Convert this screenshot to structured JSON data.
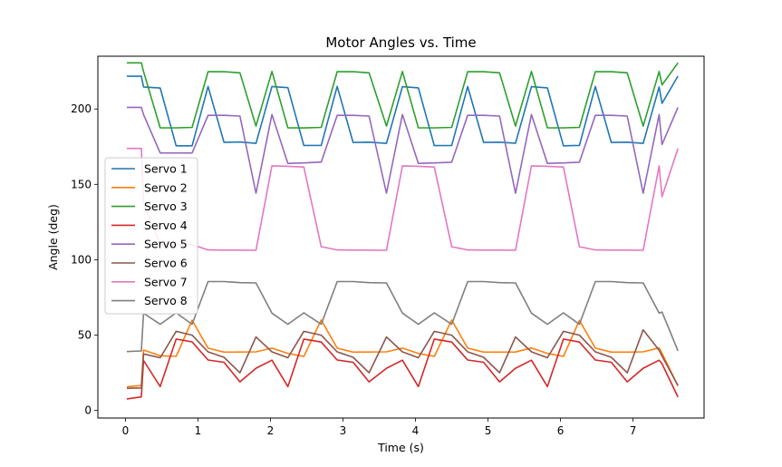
{
  "chart_data": {
    "type": "line",
    "title": "Motor Angles vs. Time",
    "xlabel": "Time (s)",
    "ylabel": "Angle (deg)",
    "xlim": [
      -0.38,
      7.98
    ],
    "ylim": [
      -5,
      235
    ],
    "xticks": [
      0,
      1,
      2,
      3,
      4,
      5,
      6,
      7
    ],
    "yticks": [
      0,
      50,
      100,
      150,
      200
    ],
    "grid": false,
    "legend_position": "center-left",
    "series": [
      {
        "name": "Servo 1",
        "color": "#1f77b4",
        "points": [
          [
            0.02,
            221.7
          ],
          [
            0.22,
            221.7
          ],
          [
            0.25,
            214.6
          ],
          [
            0.48,
            213.9
          ],
          [
            0.7,
            175.6
          ],
          [
            0.92,
            175.6
          ],
          [
            1.14,
            215.0
          ],
          [
            1.36,
            177.9
          ],
          [
            1.58,
            178.1
          ],
          [
            1.8,
            177.2
          ],
          [
            2.02,
            214.9
          ],
          [
            2.24,
            214.1
          ],
          [
            2.46,
            175.8
          ],
          [
            2.7,
            175.9
          ],
          [
            2.92,
            215.0
          ],
          [
            3.14,
            177.8
          ],
          [
            3.36,
            178.0
          ],
          [
            3.6,
            177.2
          ],
          [
            3.82,
            214.8
          ],
          [
            4.04,
            214.0
          ],
          [
            4.26,
            175.7
          ],
          [
            4.5,
            175.8
          ],
          [
            4.72,
            214.9
          ],
          [
            4.94,
            177.8
          ],
          [
            5.16,
            178.0
          ],
          [
            5.38,
            177.3
          ],
          [
            5.6,
            214.8
          ],
          [
            5.82,
            214.0
          ],
          [
            6.04,
            175.6
          ],
          [
            6.26,
            175.8
          ],
          [
            6.48,
            215.0
          ],
          [
            6.7,
            177.8
          ],
          [
            6.92,
            178.0
          ],
          [
            7.14,
            177.2
          ],
          [
            7.36,
            214.6
          ],
          [
            7.4,
            203.7
          ],
          [
            7.62,
            221.8
          ]
        ]
      },
      {
        "name": "Servo 2",
        "color": "#ff7f0e",
        "points": [
          [
            0.02,
            15.7
          ],
          [
            0.22,
            16.6
          ],
          [
            0.25,
            40.1
          ],
          [
            0.48,
            36.3
          ],
          [
            0.7,
            35.9
          ],
          [
            0.92,
            59.9
          ],
          [
            1.14,
            41.4
          ],
          [
            1.36,
            38.7
          ],
          [
            1.58,
            38.8
          ],
          [
            1.8,
            38.9
          ],
          [
            2.02,
            41.4
          ],
          [
            2.24,
            37.8
          ],
          [
            2.46,
            35.9
          ],
          [
            2.7,
            60.1
          ],
          [
            2.92,
            41.4
          ],
          [
            3.14,
            38.7
          ],
          [
            3.36,
            38.8
          ],
          [
            3.6,
            38.9
          ],
          [
            3.82,
            41.4
          ],
          [
            4.04,
            37.8
          ],
          [
            4.26,
            35.9
          ],
          [
            4.5,
            60.0
          ],
          [
            4.72,
            41.4
          ],
          [
            4.94,
            38.7
          ],
          [
            5.16,
            38.7
          ],
          [
            5.38,
            38.8
          ],
          [
            5.6,
            41.5
          ],
          [
            5.82,
            37.8
          ],
          [
            6.04,
            35.9
          ],
          [
            6.26,
            59.8
          ],
          [
            6.48,
            41.4
          ],
          [
            6.7,
            38.7
          ],
          [
            6.92,
            38.7
          ],
          [
            7.14,
            38.9
          ],
          [
            7.36,
            41.5
          ],
          [
            7.4,
            38.0
          ],
          [
            7.62,
            16.3
          ]
        ]
      },
      {
        "name": "Servo 3",
        "color": "#2ca02c",
        "points": [
          [
            0.02,
            230.6
          ],
          [
            0.22,
            230.6
          ],
          [
            0.25,
            224.9
          ],
          [
            0.48,
            187.5
          ],
          [
            0.7,
            187.5
          ],
          [
            0.92,
            187.8
          ],
          [
            1.14,
            224.7
          ],
          [
            1.36,
            224.7
          ],
          [
            1.58,
            224.0
          ],
          [
            1.8,
            188.7
          ],
          [
            2.02,
            224.9
          ],
          [
            2.24,
            187.5
          ],
          [
            2.46,
            187.4
          ],
          [
            2.7,
            187.8
          ],
          [
            2.92,
            224.7
          ],
          [
            3.14,
            224.7
          ],
          [
            3.36,
            224.0
          ],
          [
            3.6,
            188.7
          ],
          [
            3.82,
            224.9
          ],
          [
            4.04,
            187.5
          ],
          [
            4.26,
            187.5
          ],
          [
            4.5,
            187.8
          ],
          [
            4.72,
            224.7
          ],
          [
            4.94,
            224.7
          ],
          [
            5.16,
            224.0
          ],
          [
            5.38,
            188.7
          ],
          [
            5.6,
            224.9
          ],
          [
            5.82,
            187.5
          ],
          [
            6.04,
            187.5
          ],
          [
            6.26,
            187.8
          ],
          [
            6.48,
            224.7
          ],
          [
            6.7,
            224.7
          ],
          [
            6.92,
            224.0
          ],
          [
            7.14,
            188.7
          ],
          [
            7.36,
            224.9
          ],
          [
            7.4,
            216.0
          ],
          [
            7.62,
            230.6
          ]
        ]
      },
      {
        "name": "Servo 4",
        "color": "#d62728",
        "points": [
          [
            0.02,
            7.7
          ],
          [
            0.22,
            9.0
          ],
          [
            0.25,
            33.2
          ],
          [
            0.48,
            15.9
          ],
          [
            0.7,
            47.4
          ],
          [
            0.92,
            45.5
          ],
          [
            1.14,
            33.5
          ],
          [
            1.36,
            32.0
          ],
          [
            1.58,
            19.0
          ],
          [
            1.8,
            28.0
          ],
          [
            2.02,
            33.4
          ],
          [
            2.24,
            15.9
          ],
          [
            2.46,
            47.4
          ],
          [
            2.7,
            45.4
          ],
          [
            2.92,
            33.5
          ],
          [
            3.14,
            32.0
          ],
          [
            3.36,
            19.0
          ],
          [
            3.6,
            28.0
          ],
          [
            3.82,
            33.4
          ],
          [
            4.04,
            15.9
          ],
          [
            4.26,
            47.4
          ],
          [
            4.5,
            45.4
          ],
          [
            4.72,
            33.5
          ],
          [
            4.94,
            32.0
          ],
          [
            5.16,
            19.0
          ],
          [
            5.38,
            28.0
          ],
          [
            5.6,
            33.4
          ],
          [
            5.82,
            15.9
          ],
          [
            6.04,
            47.4
          ],
          [
            6.26,
            45.4
          ],
          [
            6.48,
            33.5
          ],
          [
            6.7,
            32.0
          ],
          [
            6.92,
            19.0
          ],
          [
            7.14,
            28.0
          ],
          [
            7.36,
            33.4
          ],
          [
            7.4,
            31.0
          ],
          [
            7.62,
            8.9
          ]
        ]
      },
      {
        "name": "Servo 5",
        "color": "#9467bd",
        "points": [
          [
            0.02,
            201.1
          ],
          [
            0.22,
            201.1
          ],
          [
            0.25,
            196.3
          ],
          [
            0.48,
            170.8
          ],
          [
            0.7,
            170.8
          ],
          [
            0.92,
            170.8
          ],
          [
            1.14,
            195.8
          ],
          [
            1.36,
            195.8
          ],
          [
            1.58,
            195.3
          ],
          [
            1.8,
            144.2
          ],
          [
            2.02,
            196.3
          ],
          [
            2.24,
            163.9
          ],
          [
            2.46,
            164.2
          ],
          [
            2.7,
            164.8
          ],
          [
            2.92,
            195.8
          ],
          [
            3.14,
            195.8
          ],
          [
            3.36,
            195.3
          ],
          [
            3.6,
            144.2
          ],
          [
            3.82,
            196.3
          ],
          [
            4.04,
            163.9
          ],
          [
            4.26,
            164.2
          ],
          [
            4.5,
            164.7
          ],
          [
            4.72,
            195.8
          ],
          [
            4.94,
            195.8
          ],
          [
            5.16,
            195.3
          ],
          [
            5.38,
            144.1
          ],
          [
            5.6,
            196.3
          ],
          [
            5.82,
            163.9
          ],
          [
            6.04,
            164.2
          ],
          [
            6.26,
            164.7
          ],
          [
            6.48,
            195.8
          ],
          [
            6.7,
            195.8
          ],
          [
            6.92,
            195.3
          ],
          [
            7.14,
            144.1
          ],
          [
            7.36,
            196.3
          ],
          [
            7.4,
            176.5
          ],
          [
            7.62,
            201.1
          ]
        ]
      },
      {
        "name": "Servo 6",
        "color": "#8c564b",
        "points": [
          [
            0.02,
            14.7
          ],
          [
            0.22,
            15.0
          ],
          [
            0.25,
            37.5
          ],
          [
            0.48,
            35.0
          ],
          [
            0.7,
            52.5
          ],
          [
            0.92,
            50.0
          ],
          [
            1.14,
            38.9
          ],
          [
            1.36,
            35.3
          ],
          [
            1.58,
            25.0
          ],
          [
            1.8,
            48.8
          ],
          [
            2.02,
            38.9
          ],
          [
            2.24,
            35.0
          ],
          [
            2.46,
            52.5
          ],
          [
            2.7,
            50.0
          ],
          [
            2.92,
            38.9
          ],
          [
            3.14,
            35.3
          ],
          [
            3.36,
            25.0
          ],
          [
            3.6,
            48.8
          ],
          [
            3.82,
            38.9
          ],
          [
            4.04,
            35.0
          ],
          [
            4.26,
            52.5
          ],
          [
            4.5,
            50.0
          ],
          [
            4.72,
            38.9
          ],
          [
            4.94,
            35.3
          ],
          [
            5.16,
            25.0
          ],
          [
            5.38,
            48.8
          ],
          [
            5.6,
            38.9
          ],
          [
            5.82,
            35.0
          ],
          [
            6.04,
            52.5
          ],
          [
            6.26,
            50.0
          ],
          [
            6.48,
            38.9
          ],
          [
            6.7,
            35.3
          ],
          [
            6.92,
            25.0
          ],
          [
            7.14,
            53.5
          ],
          [
            7.36,
            40.0
          ],
          [
            7.4,
            36.0
          ],
          [
            7.62,
            16.6
          ]
        ]
      },
      {
        "name": "Servo 7",
        "color": "#e377c2",
        "points": [
          [
            0.02,
            173.8
          ],
          [
            0.22,
            173.8
          ],
          [
            0.25,
            137.4
          ],
          [
            0.48,
            110.0
          ],
          [
            0.7,
            110.0
          ],
          [
            0.92,
            110.0
          ],
          [
            1.14,
            106.5
          ],
          [
            1.36,
            106.4
          ],
          [
            1.58,
            106.4
          ],
          [
            1.8,
            106.3
          ],
          [
            2.02,
            162.3
          ],
          [
            2.24,
            162.0
          ],
          [
            2.46,
            161.5
          ],
          [
            2.7,
            108.7
          ],
          [
            2.92,
            106.5
          ],
          [
            3.14,
            106.4
          ],
          [
            3.36,
            106.4
          ],
          [
            3.6,
            106.3
          ],
          [
            3.82,
            162.3
          ],
          [
            4.04,
            162.0
          ],
          [
            4.26,
            161.5
          ],
          [
            4.5,
            108.6
          ],
          [
            4.72,
            106.5
          ],
          [
            4.94,
            106.4
          ],
          [
            5.16,
            106.4
          ],
          [
            5.38,
            106.3
          ],
          [
            5.6,
            162.3
          ],
          [
            5.82,
            162.0
          ],
          [
            6.04,
            161.5
          ],
          [
            6.26,
            108.6
          ],
          [
            6.48,
            106.5
          ],
          [
            6.7,
            106.4
          ],
          [
            6.92,
            106.4
          ],
          [
            7.14,
            106.3
          ],
          [
            7.36,
            162.3
          ],
          [
            7.4,
            141.8
          ],
          [
            7.62,
            173.8
          ]
        ]
      },
      {
        "name": "Servo 8",
        "color": "#7f7f7f",
        "points": [
          [
            0.02,
            39.1
          ],
          [
            0.22,
            39.5
          ],
          [
            0.25,
            64.5
          ],
          [
            0.48,
            57.2
          ],
          [
            0.7,
            64.8
          ],
          [
            0.92,
            57.2
          ],
          [
            1.14,
            85.5
          ],
          [
            1.36,
            85.5
          ],
          [
            1.58,
            84.8
          ],
          [
            1.8,
            84.6
          ],
          [
            2.02,
            64.6
          ],
          [
            2.24,
            57.2
          ],
          [
            2.46,
            64.8
          ],
          [
            2.7,
            57.2
          ],
          [
            2.92,
            85.5
          ],
          [
            3.14,
            85.5
          ],
          [
            3.36,
            84.8
          ],
          [
            3.6,
            84.6
          ],
          [
            3.82,
            64.6
          ],
          [
            4.04,
            57.2
          ],
          [
            4.26,
            64.8
          ],
          [
            4.5,
            57.2
          ],
          [
            4.72,
            85.5
          ],
          [
            4.94,
            85.5
          ],
          [
            5.16,
            84.8
          ],
          [
            5.38,
            84.6
          ],
          [
            5.6,
            64.6
          ],
          [
            5.82,
            57.2
          ],
          [
            6.04,
            64.8
          ],
          [
            6.26,
            57.2
          ],
          [
            6.48,
            85.5
          ],
          [
            6.7,
            85.5
          ],
          [
            6.92,
            84.8
          ],
          [
            7.14,
            84.6
          ],
          [
            7.36,
            64.6
          ],
          [
            7.4,
            65.3
          ],
          [
            7.62,
            39.6
          ]
        ]
      }
    ]
  }
}
